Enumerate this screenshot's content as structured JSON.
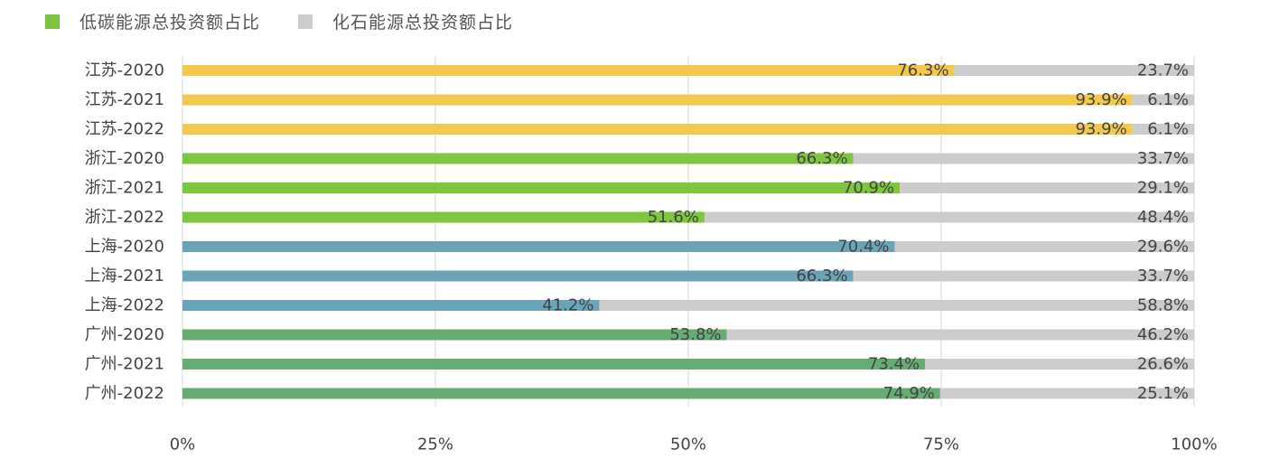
{
  "legend": {
    "low_carbon": "低碳能源总投资额占比",
    "fossil": "化石能源总投资额占比"
  },
  "colors": {
    "low_carbon_legend": "#7dc242",
    "fossil": "#cccccc",
    "jiangsu": "#f2c94c",
    "zhejiang": "#7fc63f",
    "shanghai": "#6aa4b9",
    "guangzhou": "#66ad74"
  },
  "chart_data": {
    "type": "bar",
    "orientation": "horizontal",
    "stacked": true,
    "categories": [
      "江苏-2020",
      "江苏-2021",
      "江苏-2022",
      "浙江-2020",
      "浙江-2021",
      "浙江-2022",
      "上海-2020",
      "上海-2021",
      "上海-2022",
      "广州-2020",
      "广州-2021",
      "广州-2022"
    ],
    "series": [
      {
        "name": "低碳能源总投资额占比",
        "values": [
          76.3,
          93.9,
          93.9,
          66.3,
          70.9,
          51.6,
          70.4,
          66.3,
          41.2,
          53.8,
          73.4,
          74.9
        ],
        "labels": [
          "76.3%",
          "93.9%",
          "93.9%",
          "66.3%",
          "70.9%",
          "51.6%",
          "70.4%",
          "66.3%",
          "41.2%",
          "53.8%",
          "73.4%",
          "74.9%"
        ]
      },
      {
        "name": "化石能源总投资额占比",
        "values": [
          23.7,
          6.1,
          6.1,
          33.7,
          29.1,
          48.4,
          29.6,
          33.7,
          58.8,
          46.2,
          26.6,
          25.1
        ],
        "labels": [
          "23.7%",
          "6.1%",
          "6.1%",
          "33.7%",
          "29.1%",
          "48.4%",
          "29.6%",
          "33.7%",
          "58.8%",
          "46.2%",
          "26.6%",
          "25.1%"
        ]
      }
    ],
    "xlim": [
      0,
      100
    ],
    "x_ticks": [
      0,
      25,
      50,
      75,
      100
    ],
    "x_tick_labels": [
      "0%",
      "25%",
      "50%",
      "75%",
      "100%"
    ],
    "grid": true,
    "legend_position": "top-left"
  }
}
